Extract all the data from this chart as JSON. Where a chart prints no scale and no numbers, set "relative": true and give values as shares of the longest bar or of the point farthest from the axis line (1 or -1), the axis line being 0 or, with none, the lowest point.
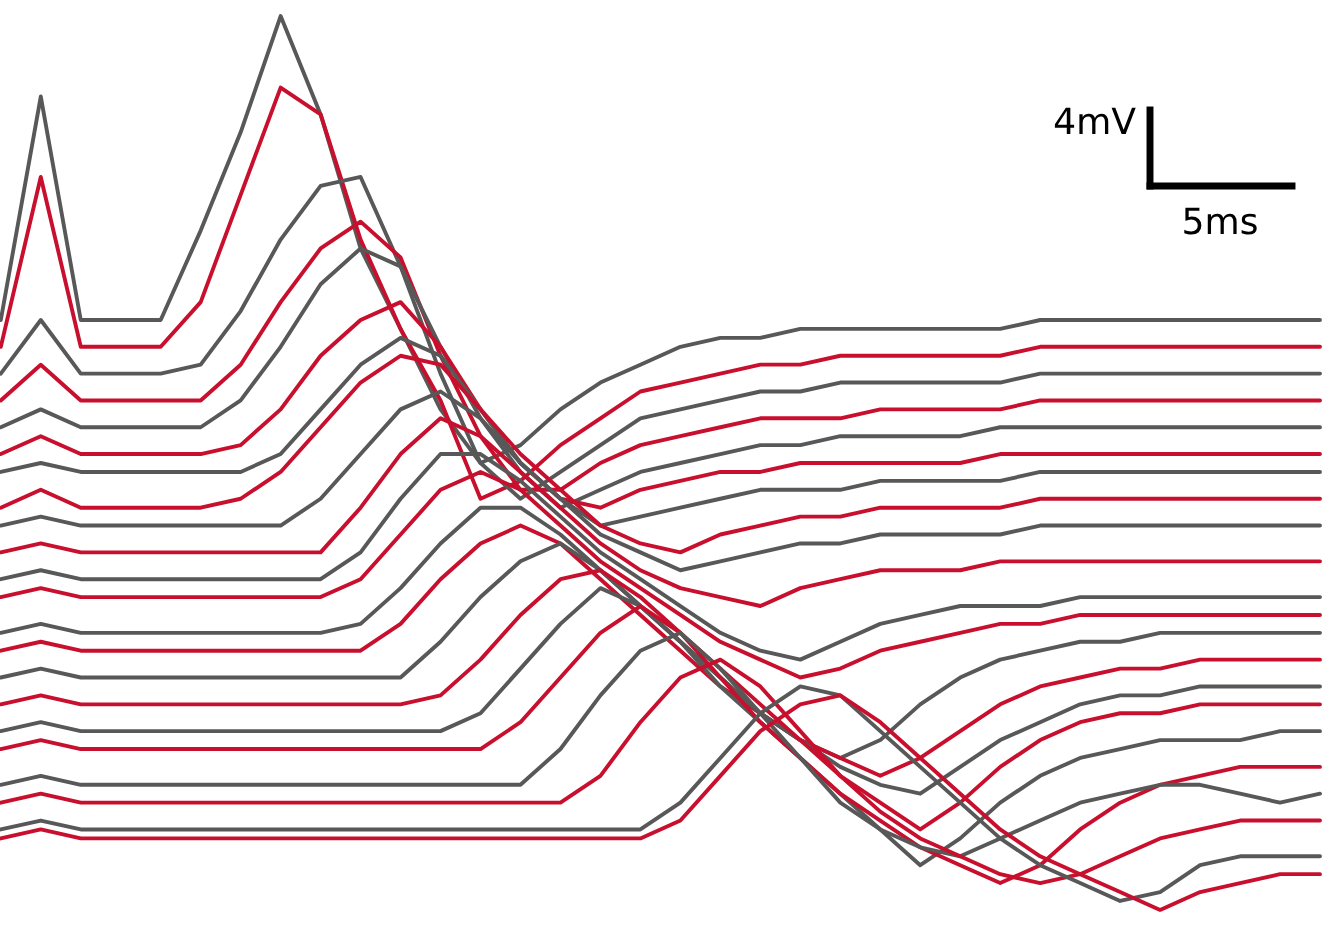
{
  "chart_data": {
    "type": "line",
    "relative": true,
    "annotations": [
      "4mV",
      "5ms"
    ],
    "categories": [
      null,
      null,
      null,
      null,
      null,
      null,
      null,
      null,
      null,
      null,
      null,
      null,
      null,
      null,
      null,
      null,
      null,
      null,
      null,
      null,
      null,
      null,
      null,
      null,
      null,
      null,
      null,
      null,
      null,
      null,
      null,
      null,
      null,
      null
    ],
    "series": [
      {
        "color": "#585858",
        "values": [
          0.66,
          0.91,
          0.66,
          0.66,
          0.66,
          0.76,
          0.87,
          1.0,
          0.89,
          0.74,
          0.65,
          0.56,
          0.5,
          0.52,
          0.56,
          0.59,
          0.61,
          0.63,
          0.64,
          0.64,
          0.65,
          0.65,
          0.65,
          0.65,
          0.65,
          0.65,
          0.66,
          0.66,
          0.66,
          0.66,
          0.66,
          0.66,
          0.66,
          0.66
        ]
      },
      {
        "color": "#c8102e",
        "values": [
          0.63,
          0.82,
          0.63,
          0.63,
          0.63,
          0.68,
          0.8,
          0.92,
          0.89,
          0.75,
          0.65,
          0.57,
          0.46,
          0.48,
          0.52,
          0.55,
          0.58,
          0.59,
          0.6,
          0.61,
          0.61,
          0.62,
          0.62,
          0.62,
          0.62,
          0.62,
          0.63,
          0.63,
          0.63,
          0.63,
          0.63,
          0.63,
          0.63,
          0.63
        ]
      },
      {
        "color": "#585858",
        "values": [
          0.6,
          0.66,
          0.6,
          0.6,
          0.6,
          0.61,
          0.67,
          0.75,
          0.81,
          0.82,
          0.72,
          0.6,
          0.5,
          0.46,
          0.49,
          0.52,
          0.55,
          0.56,
          0.57,
          0.58,
          0.58,
          0.59,
          0.59,
          0.59,
          0.59,
          0.59,
          0.6,
          0.6,
          0.6,
          0.6,
          0.6,
          0.6,
          0.6,
          0.6
        ]
      },
      {
        "color": "#c8102e",
        "values": [
          0.57,
          0.61,
          0.57,
          0.57,
          0.57,
          0.57,
          0.61,
          0.68,
          0.74,
          0.77,
          0.73,
          0.62,
          0.53,
          0.47,
          0.47,
          0.5,
          0.52,
          0.53,
          0.54,
          0.55,
          0.55,
          0.55,
          0.56,
          0.56,
          0.56,
          0.56,
          0.57,
          0.57,
          0.57,
          0.57,
          0.57,
          0.57,
          0.57,
          0.57
        ]
      },
      {
        "color": "#585858",
        "values": [
          0.54,
          0.56,
          0.54,
          0.54,
          0.54,
          0.54,
          0.57,
          0.63,
          0.7,
          0.74,
          0.72,
          0.63,
          0.55,
          0.49,
          0.45,
          0.47,
          0.49,
          0.5,
          0.51,
          0.52,
          0.52,
          0.53,
          0.53,
          0.53,
          0.53,
          0.54,
          0.54,
          0.54,
          0.54,
          0.54,
          0.54,
          0.54,
          0.54,
          0.54
        ]
      },
      {
        "color": "#c8102e",
        "values": [
          0.51,
          0.53,
          0.51,
          0.51,
          0.51,
          0.51,
          0.52,
          0.56,
          0.62,
          0.66,
          0.68,
          0.63,
          0.56,
          0.5,
          0.46,
          0.45,
          0.47,
          0.48,
          0.49,
          0.49,
          0.5,
          0.5,
          0.5,
          0.5,
          0.5,
          0.51,
          0.51,
          0.51,
          0.51,
          0.51,
          0.51,
          0.51,
          0.51,
          0.51
        ]
      },
      {
        "color": "#585858",
        "values": [
          0.49,
          0.5,
          0.49,
          0.49,
          0.49,
          0.49,
          0.49,
          0.51,
          0.56,
          0.61,
          0.64,
          0.62,
          0.56,
          0.5,
          0.46,
          0.43,
          0.44,
          0.45,
          0.46,
          0.47,
          0.47,
          0.47,
          0.48,
          0.48,
          0.48,
          0.48,
          0.49,
          0.49,
          0.49,
          0.49,
          0.49,
          0.49,
          0.49,
          0.49
        ]
      },
      {
        "color": "#c8102e",
        "values": [
          0.45,
          0.47,
          0.45,
          0.45,
          0.45,
          0.45,
          0.46,
          0.49,
          0.54,
          0.59,
          0.62,
          0.61,
          0.56,
          0.51,
          0.47,
          0.43,
          0.41,
          0.4,
          0.42,
          0.43,
          0.44,
          0.44,
          0.45,
          0.45,
          0.45,
          0.45,
          0.46,
          0.46,
          0.46,
          0.46,
          0.46,
          0.46,
          0.46,
          0.46
        ]
      },
      {
        "color": "#585858",
        "values": [
          0.43,
          0.44,
          0.43,
          0.43,
          0.43,
          0.43,
          0.43,
          0.43,
          0.46,
          0.51,
          0.56,
          0.58,
          0.55,
          0.5,
          0.46,
          0.42,
          0.4,
          0.38,
          0.39,
          0.4,
          0.41,
          0.41,
          0.42,
          0.42,
          0.42,
          0.42,
          0.43,
          0.43,
          0.43,
          0.43,
          0.43,
          0.43,
          0.43,
          0.43
        ]
      },
      {
        "color": "#c8102e",
        "values": [
          0.4,
          0.41,
          0.4,
          0.4,
          0.4,
          0.4,
          0.4,
          0.4,
          0.4,
          0.45,
          0.51,
          0.55,
          0.53,
          0.49,
          0.45,
          0.41,
          0.38,
          0.36,
          0.35,
          0.34,
          0.36,
          0.37,
          0.38,
          0.38,
          0.38,
          0.39,
          0.39,
          0.39,
          0.39,
          0.39,
          0.39,
          0.39,
          0.39,
          0.39
        ]
      },
      {
        "color": "#585858",
        "values": [
          0.37,
          0.38,
          0.37,
          0.37,
          0.37,
          0.37,
          0.37,
          0.37,
          0.37,
          0.4,
          0.46,
          0.51,
          0.51,
          0.48,
          0.44,
          0.4,
          0.37,
          0.34,
          0.31,
          0.29,
          0.28,
          0.3,
          0.32,
          0.33,
          0.34,
          0.34,
          0.34,
          0.35,
          0.35,
          0.35,
          0.35,
          0.35,
          0.35,
          0.35
        ]
      },
      {
        "color": "#c8102e",
        "values": [
          0.35,
          0.36,
          0.35,
          0.35,
          0.35,
          0.35,
          0.35,
          0.35,
          0.35,
          0.37,
          0.42,
          0.47,
          0.49,
          0.47,
          0.43,
          0.39,
          0.36,
          0.33,
          0.3,
          0.28,
          0.26,
          0.27,
          0.29,
          0.3,
          0.31,
          0.32,
          0.32,
          0.33,
          0.33,
          0.33,
          0.33,
          0.33,
          0.33,
          0.33
        ]
      },
      {
        "color": "#585858",
        "values": [
          0.31,
          0.32,
          0.31,
          0.31,
          0.31,
          0.31,
          0.31,
          0.31,
          0.31,
          0.32,
          0.36,
          0.41,
          0.45,
          0.45,
          0.42,
          0.38,
          0.34,
          0.3,
          0.26,
          0.22,
          0.19,
          0.17,
          0.19,
          0.23,
          0.26,
          0.28,
          0.29,
          0.3,
          0.3,
          0.31,
          0.31,
          0.31,
          0.31,
          0.31
        ]
      },
      {
        "color": "#c8102e",
        "values": [
          0.29,
          0.3,
          0.29,
          0.29,
          0.29,
          0.29,
          0.29,
          0.29,
          0.29,
          0.29,
          0.32,
          0.37,
          0.41,
          0.43,
          0.41,
          0.37,
          0.33,
          0.29,
          0.25,
          0.22,
          0.19,
          0.17,
          0.15,
          0.17,
          0.2,
          0.23,
          0.25,
          0.26,
          0.27,
          0.27,
          0.28,
          0.28,
          0.28,
          0.28
        ]
      },
      {
        "color": "#585858",
        "values": [
          0.26,
          0.27,
          0.26,
          0.26,
          0.26,
          0.26,
          0.26,
          0.26,
          0.26,
          0.26,
          0.26,
          0.3,
          0.35,
          0.39,
          0.41,
          0.38,
          0.34,
          0.3,
          0.26,
          0.22,
          0.19,
          0.16,
          0.14,
          0.13,
          0.16,
          0.19,
          0.21,
          0.23,
          0.24,
          0.24,
          0.25,
          0.25,
          0.25,
          0.25
        ]
      },
      {
        "color": "#c8102e",
        "values": [
          0.23,
          0.24,
          0.23,
          0.23,
          0.23,
          0.23,
          0.23,
          0.23,
          0.23,
          0.23,
          0.23,
          0.24,
          0.28,
          0.33,
          0.37,
          0.38,
          0.35,
          0.31,
          0.27,
          0.23,
          0.19,
          0.15,
          0.12,
          0.09,
          0.12,
          0.16,
          0.19,
          0.21,
          0.22,
          0.22,
          0.23,
          0.23,
          0.23,
          0.23
        ]
      },
      {
        "color": "#585858",
        "values": [
          0.2,
          0.21,
          0.2,
          0.2,
          0.2,
          0.2,
          0.2,
          0.2,
          0.2,
          0.2,
          0.2,
          0.2,
          0.22,
          0.27,
          0.32,
          0.36,
          0.34,
          0.3,
          0.25,
          0.21,
          0.17,
          0.13,
          0.09,
          0.05,
          0.08,
          0.12,
          0.15,
          0.17,
          0.18,
          0.19,
          0.19,
          0.19,
          0.2,
          0.2
        ]
      },
      {
        "color": "#c8102e",
        "values": [
          0.18,
          0.19,
          0.18,
          0.18,
          0.18,
          0.18,
          0.18,
          0.18,
          0.18,
          0.18,
          0.18,
          0.18,
          0.18,
          0.21,
          0.26,
          0.31,
          0.34,
          0.31,
          0.26,
          0.21,
          0.17,
          0.13,
          0.1,
          0.07,
          0.05,
          0.03,
          0.05,
          0.09,
          0.12,
          0.14,
          0.15,
          0.16,
          0.16,
          0.16
        ]
      },
      {
        "color": "#585858",
        "values": [
          0.14,
          0.15,
          0.14,
          0.14,
          0.14,
          0.14,
          0.14,
          0.14,
          0.14,
          0.14,
          0.14,
          0.14,
          0.14,
          0.14,
          0.18,
          0.24,
          0.29,
          0.31,
          0.27,
          0.22,
          0.17,
          0.12,
          0.09,
          0.07,
          0.06,
          0.08,
          0.1,
          0.12,
          0.13,
          0.14,
          0.14,
          0.13,
          0.12,
          0.13
        ]
      },
      {
        "color": "#c8102e",
        "values": [
          0.12,
          0.13,
          0.12,
          0.12,
          0.12,
          0.12,
          0.12,
          0.12,
          0.12,
          0.12,
          0.12,
          0.12,
          0.12,
          0.12,
          0.12,
          0.15,
          0.21,
          0.26,
          0.28,
          0.25,
          0.2,
          0.15,
          0.11,
          0.08,
          0.06,
          0.04,
          0.03,
          0.04,
          0.06,
          0.08,
          0.09,
          0.1,
          0.1,
          0.1
        ]
      },
      {
        "color": "#585858",
        "values": [
          0.09,
          0.1,
          0.09,
          0.09,
          0.09,
          0.09,
          0.09,
          0.09,
          0.09,
          0.09,
          0.09,
          0.09,
          0.09,
          0.09,
          0.09,
          0.09,
          0.09,
          0.12,
          0.17,
          0.22,
          0.25,
          0.24,
          0.2,
          0.16,
          0.12,
          0.08,
          0.05,
          0.03,
          0.01,
          0.02,
          0.05,
          0.06,
          0.06,
          0.06
        ]
      },
      {
        "color": "#c8102e",
        "values": [
          0.08,
          0.09,
          0.08,
          0.08,
          0.08,
          0.08,
          0.08,
          0.08,
          0.08,
          0.08,
          0.08,
          0.08,
          0.08,
          0.08,
          0.08,
          0.08,
          0.08,
          0.1,
          0.15,
          0.2,
          0.23,
          0.24,
          0.21,
          0.17,
          0.13,
          0.09,
          0.06,
          0.04,
          0.02,
          0.0,
          0.02,
          0.03,
          0.04,
          0.04
        ]
      }
    ]
  }
}
